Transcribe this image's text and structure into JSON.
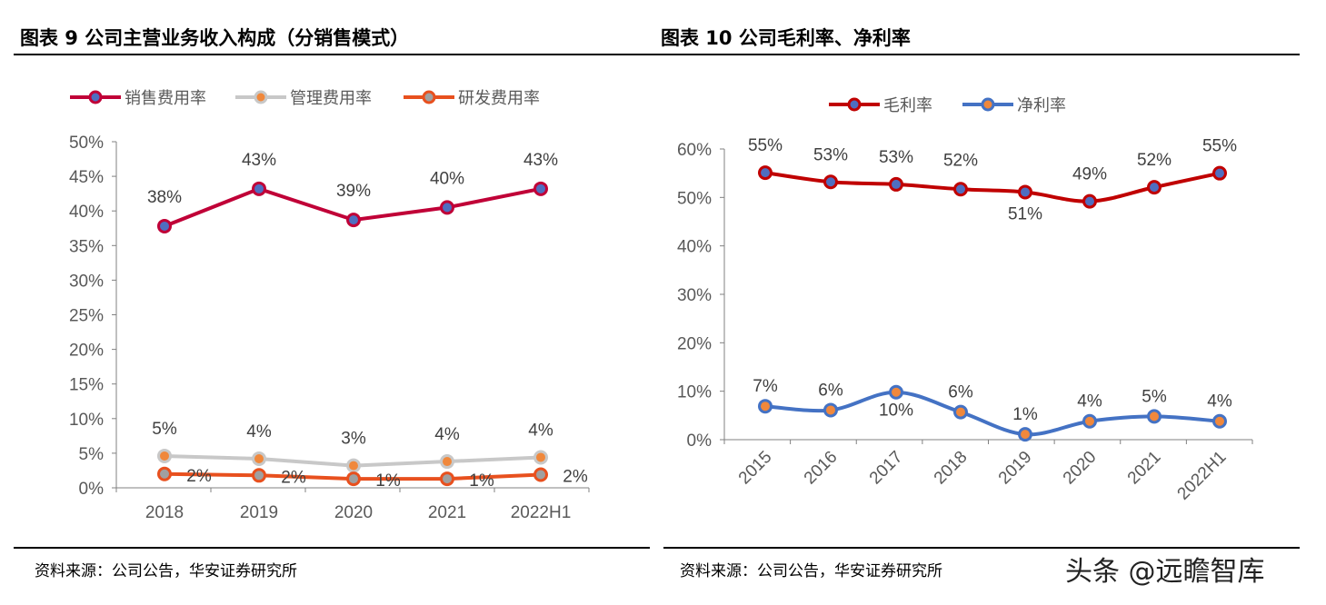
{
  "left": {
    "title": "图表 9 公司主营业务收入构成（分销售模式）",
    "source": "资料来源：公司公告，华安证券研究所"
  },
  "right": {
    "title": "图表 10  公司毛利率、净利率",
    "source": "资料来源：公司公告，华安证券研究所"
  },
  "watermark": "头条 @远瞻智库",
  "chart_data": [
    {
      "type": "line",
      "categories": [
        "2018",
        "2019",
        "2020",
        "2021",
        "2022H1"
      ],
      "ylim": [
        0,
        50
      ],
      "yticks": [
        "0%",
        "5%",
        "10%",
        "15%",
        "20%",
        "25%",
        "30%",
        "35%",
        "40%",
        "45%",
        "50%"
      ],
      "legend": "top",
      "series": [
        {
          "name": "销售费用率",
          "color": "#C00037",
          "marker": "#4F6EC0",
          "values": [
            37.8,
            43.2,
            38.7,
            40.5,
            43.2
          ],
          "labels": [
            "38%",
            "43%",
            "39%",
            "40%",
            "43%"
          ]
        },
        {
          "name": "管理费用率",
          "color": "#C8C8C8",
          "marker": "#F0883C",
          "values": [
            4.6,
            4.2,
            3.2,
            3.8,
            4.4
          ],
          "labels": [
            "5%",
            "4%",
            "3%",
            "4%",
            "4%"
          ]
        },
        {
          "name": "研发费用率",
          "color": "#E8501E",
          "marker": "#A0A0A0",
          "values": [
            2.0,
            1.8,
            1.3,
            1.3,
            1.9
          ],
          "labels": [
            "2%",
            "2%",
            "1%",
            "1%",
            "2%"
          ]
        }
      ]
    },
    {
      "type": "line",
      "categories": [
        "2015",
        "2016",
        "2017",
        "2018",
        "2019",
        "2020",
        "2021",
        "2022H1"
      ],
      "ylim": [
        0,
        60
      ],
      "yticks": [
        "0%",
        "10%",
        "20%",
        "30%",
        "40%",
        "50%",
        "60%"
      ],
      "legend": "top",
      "smooth": true,
      "series": [
        {
          "name": "毛利率",
          "color": "#C00000",
          "marker": "#4F6EC0",
          "values": [
            55.1,
            53.2,
            52.7,
            51.7,
            51.1,
            49.2,
            52.1,
            55.0
          ],
          "labels": [
            "55%",
            "53%",
            "53%",
            "52%",
            "51%",
            "49%",
            "52%",
            "55%"
          ]
        },
        {
          "name": "净利率",
          "color": "#4472C4",
          "marker": "#F0883C",
          "values": [
            6.9,
            6.1,
            9.8,
            5.7,
            1.1,
            3.8,
            4.8,
            3.8
          ],
          "labels": [
            "7%",
            "6%",
            "10%",
            "6%",
            "1%",
            "4%",
            "5%",
            "4%"
          ]
        }
      ]
    }
  ]
}
